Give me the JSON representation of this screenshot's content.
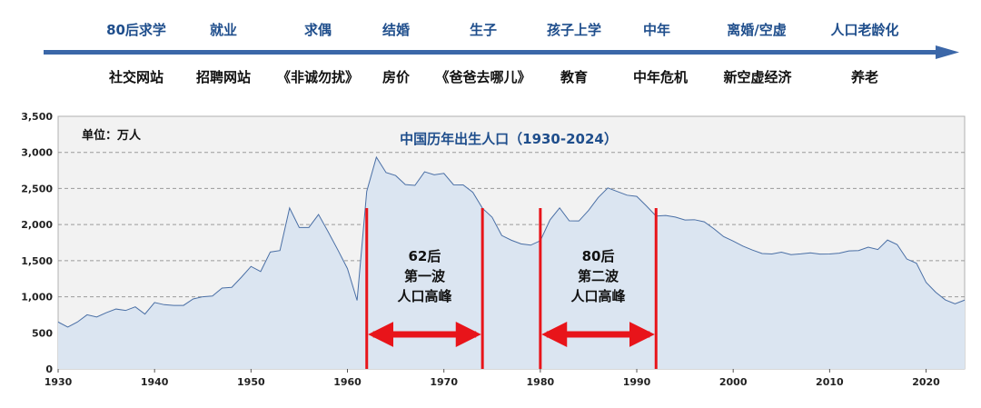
{
  "stages": [
    "80后求学",
    "就业",
    "求偶",
    "结婚",
    "生子",
    "孩子上学",
    "中年",
    "离婚/空虚",
    "人口老龄化"
  ],
  "topics": [
    "社交网站",
    "招聘网站",
    "《非诚勿扰》",
    "房价",
    "《爸爸去哪儿》",
    "教育",
    "中年危机",
    "新空虚经济",
    "养老"
  ],
  "colors": {
    "arrow": "#3b67a8",
    "stage_text": "#1f4e8c",
    "area_fill": "#dbe5f1",
    "area_line": "#4a6fa5",
    "marker": "#e8141a",
    "plot_bg": "#f2f2f2"
  },
  "chart_data": {
    "type": "area",
    "title": "中国历年出生人口（1930-2024）",
    "unit_label": "单位：万人",
    "xlabel": "",
    "ylabel": "",
    "xlim": [
      1930,
      2024
    ],
    "ylim": [
      0,
      3500
    ],
    "x_ticks": [
      1930,
      1940,
      1950,
      1960,
      1970,
      1980,
      1990,
      2000,
      2010,
      2020
    ],
    "y_ticks": [
      "0",
      "500",
      "1,000",
      "1,500",
      "2,000",
      "2,500",
      "3,000",
      "3,500"
    ],
    "y_tick_values": [
      0,
      500,
      1000,
      1500,
      2000,
      2500,
      3000,
      3500
    ],
    "grid": true,
    "series": [
      {
        "name": "出生人口",
        "x": [
          1930,
          1931,
          1932,
          1933,
          1934,
          1935,
          1936,
          1937,
          1938,
          1939,
          1940,
          1941,
          1942,
          1943,
          1944,
          1945,
          1946,
          1947,
          1948,
          1949,
          1950,
          1951,
          1952,
          1953,
          1954,
          1955,
          1956,
          1957,
          1958,
          1959,
          1960,
          1961,
          1962,
          1963,
          1964,
          1965,
          1966,
          1967,
          1968,
          1969,
          1970,
          1971,
          1972,
          1973,
          1974,
          1975,
          1976,
          1977,
          1978,
          1979,
          1980,
          1981,
          1982,
          1983,
          1984,
          1985,
          1986,
          1987,
          1988,
          1989,
          1990,
          1991,
          1992,
          1993,
          1994,
          1995,
          1996,
          1997,
          1998,
          1999,
          2000,
          2001,
          2002,
          2003,
          2004,
          2005,
          2006,
          2007,
          2008,
          2009,
          2010,
          2011,
          2012,
          2013,
          2014,
          2015,
          2016,
          2017,
          2018,
          2019,
          2020,
          2021,
          2022,
          2023,
          2024
        ],
        "values": [
          650,
          580,
          650,
          750,
          720,
          780,
          830,
          810,
          860,
          760,
          920,
          890,
          880,
          880,
          970,
          1000,
          1010,
          1120,
          1130,
          1270,
          1420,
          1350,
          1620,
          1640,
          2230,
          1960,
          1960,
          2140,
          1900,
          1650,
          1390,
          949,
          2460,
          2934,
          2721,
          2679,
          2554,
          2543,
          2731,
          2690,
          2710,
          2551,
          2550,
          2447,
          2226,
          2102,
          1849,
          1783,
          1733,
          1715,
          1776,
          2064,
          2230,
          2052,
          2050,
          2196,
          2374,
          2508,
          2457,
          2407,
          2391,
          2258,
          2119,
          2126,
          2104,
          2063,
          2067,
          2038,
          1942,
          1834,
          1771,
          1702,
          1647,
          1599,
          1593,
          1617,
          1584,
          1594,
          1608,
          1591,
          1592,
          1604,
          1635,
          1640,
          1687,
          1655,
          1786,
          1723,
          1523,
          1465,
          1200,
          1062,
          956,
          902,
          954
        ]
      }
    ],
    "annotations": [
      {
        "id": "wave1",
        "lines": [
          "62后",
          "第一波",
          "人口高峰"
        ],
        "x_start": 1962,
        "x_end": 1974
      },
      {
        "id": "wave2",
        "lines": [
          "80后",
          "第二波",
          "人口高峰"
        ],
        "x_start": 1980,
        "x_end": 1992
      }
    ]
  }
}
